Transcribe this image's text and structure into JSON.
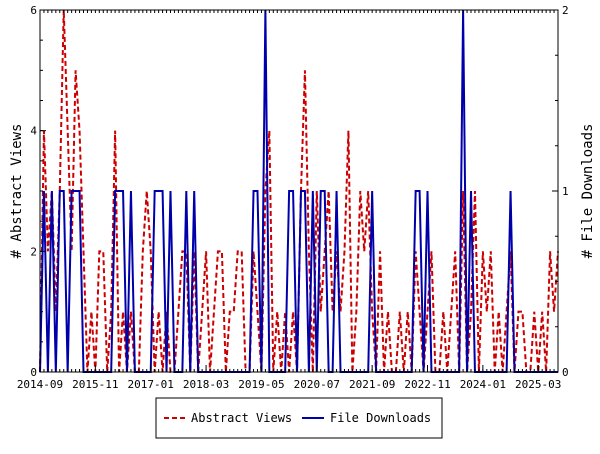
{
  "chart_data": {
    "type": "line",
    "title": "",
    "ylabel_left": "# Abstract Views",
    "ylabel_right": "# File Downloads",
    "x_ticks": [
      "2014-09",
      "2015-11",
      "2017-01",
      "2018-03",
      "2019-05",
      "2020-07",
      "2021-09",
      "2022-11",
      "2024-01",
      "2025-03"
    ],
    "xlim": [
      "2014-09",
      "2025-08"
    ],
    "ylim_left": [
      0,
      6
    ],
    "yticks_left": [
      "0",
      "2",
      "4",
      "6"
    ],
    "ylim_right": [
      0,
      2
    ],
    "yticks_right": [
      "0",
      "1",
      "2"
    ],
    "grid": false,
    "legend_position": "bottom",
    "series": [
      {
        "name": "Abstract Views",
        "axis": "left",
        "color": "#cc0000",
        "style": "dashed",
        "x": [
          "2014-09",
          "2014-10",
          "2014-11",
          "2014-12",
          "2015-01",
          "2015-02",
          "2015-03",
          "2015-04",
          "2015-05",
          "2015-06",
          "2015-07",
          "2015-08",
          "2015-09",
          "2015-10",
          "2015-11",
          "2015-12",
          "2016-01",
          "2016-02",
          "2016-03",
          "2016-04",
          "2016-05",
          "2016-06",
          "2016-07",
          "2016-08",
          "2016-09",
          "2016-10",
          "2016-11",
          "2016-12",
          "2017-01",
          "2017-02",
          "2017-03",
          "2017-04",
          "2017-05",
          "2017-06",
          "2017-07",
          "2017-08",
          "2017-09",
          "2017-10",
          "2017-11",
          "2017-12",
          "2018-01",
          "2018-02",
          "2018-03",
          "2018-04",
          "2018-05",
          "2018-06",
          "2018-07",
          "2018-08",
          "2018-09",
          "2018-10",
          "2018-11",
          "2018-12",
          "2019-01",
          "2019-02",
          "2019-03",
          "2019-04",
          "2019-05",
          "2019-06",
          "2019-07",
          "2019-08",
          "2019-09",
          "2019-10",
          "2019-11",
          "2019-12",
          "2020-01",
          "2020-02",
          "2020-03",
          "2020-04",
          "2020-05",
          "2020-06",
          "2020-07",
          "2020-08",
          "2020-09",
          "2020-10",
          "2020-11",
          "2020-12",
          "2021-01",
          "2021-02",
          "2021-03",
          "2021-04",
          "2021-05",
          "2021-06",
          "2021-07",
          "2021-08",
          "2021-09",
          "2021-10",
          "2021-11",
          "2021-12",
          "2022-01",
          "2022-02",
          "2022-03",
          "2022-04",
          "2022-05",
          "2022-06",
          "2022-07",
          "2022-08",
          "2022-09",
          "2022-10",
          "2022-11",
          "2022-12",
          "2023-01",
          "2023-02",
          "2023-03",
          "2023-04",
          "2023-05",
          "2023-06",
          "2023-07",
          "2023-08",
          "2023-09",
          "2023-10",
          "2023-11",
          "2023-12",
          "2024-01",
          "2024-02",
          "2024-03",
          "2024-04",
          "2024-05",
          "2024-06",
          "2024-07",
          "2024-08",
          "2024-09",
          "2024-10",
          "2024-11",
          "2024-12",
          "2025-01",
          "2025-02",
          "2025-03",
          "2025-04",
          "2025-05",
          "2025-06",
          "2025-07",
          "2025-08"
        ],
        "values": [
          0,
          4,
          2,
          3,
          1,
          3,
          6,
          4,
          2,
          5,
          4,
          2,
          0,
          1,
          0,
          2,
          2,
          0,
          1,
          4,
          0,
          1,
          0,
          1,
          0,
          0,
          2,
          3,
          2,
          0,
          1,
          0,
          1,
          0,
          0,
          1,
          2,
          2,
          0,
          2,
          0,
          1,
          2,
          0,
          1,
          2,
          2,
          0,
          1,
          1,
          2,
          2,
          0,
          0,
          2,
          1,
          0,
          3,
          4,
          0,
          1,
          0,
          1,
          0,
          1,
          0,
          3,
          5,
          2,
          0,
          3,
          1,
          2,
          3,
          1,
          2,
          1,
          2,
          4,
          0,
          1,
          3,
          2,
          3,
          1,
          0,
          2,
          0,
          1,
          0,
          0,
          1,
          0,
          1,
          0,
          2,
          1,
          0,
          1,
          2,
          0,
          0,
          1,
          0,
          1,
          2,
          0,
          3,
          0,
          1,
          3,
          0,
          2,
          1,
          2,
          0,
          1,
          0,
          1,
          2,
          0,
          1,
          1,
          0,
          0,
          1,
          0,
          1,
          0,
          2,
          1,
          2
        ]
      },
      {
        "name": "File Downloads",
        "axis": "right",
        "color": "#0000aa",
        "style": "solid",
        "x": [
          "2014-09",
          "2014-10",
          "2014-11",
          "2014-12",
          "2015-01",
          "2015-02",
          "2015-03",
          "2015-04",
          "2015-05",
          "2015-06",
          "2015-07",
          "2015-08",
          "2015-09",
          "2015-10",
          "2015-11",
          "2015-12",
          "2016-01",
          "2016-02",
          "2016-03",
          "2016-04",
          "2016-05",
          "2016-06",
          "2016-07",
          "2016-08",
          "2016-09",
          "2016-10",
          "2016-11",
          "2016-12",
          "2017-01",
          "2017-02",
          "2017-03",
          "2017-04",
          "2017-05",
          "2017-06",
          "2017-07",
          "2017-08",
          "2017-09",
          "2017-10",
          "2017-11",
          "2017-12",
          "2018-01",
          "2018-02",
          "2018-03",
          "2018-04",
          "2018-05",
          "2018-06",
          "2018-07",
          "2018-08",
          "2018-09",
          "2018-10",
          "2018-11",
          "2018-12",
          "2019-01",
          "2019-02",
          "2019-03",
          "2019-04",
          "2019-05",
          "2019-06",
          "2019-07",
          "2019-08",
          "2019-09",
          "2019-10",
          "2019-11",
          "2019-12",
          "2020-01",
          "2020-02",
          "2020-03",
          "2020-04",
          "2020-05",
          "2020-06",
          "2020-07",
          "2020-08",
          "2020-09",
          "2020-10",
          "2020-11",
          "2020-12",
          "2021-01",
          "2021-02",
          "2021-03",
          "2021-04",
          "2021-05",
          "2021-06",
          "2021-07",
          "2021-08",
          "2021-09",
          "2021-10",
          "2021-11",
          "2021-12",
          "2022-01",
          "2022-02",
          "2022-03",
          "2022-04",
          "2022-05",
          "2022-06",
          "2022-07",
          "2022-08",
          "2022-09",
          "2022-10",
          "2022-11",
          "2022-12",
          "2023-01",
          "2023-02",
          "2023-03",
          "2023-04",
          "2023-05",
          "2023-06",
          "2023-07",
          "2023-08",
          "2023-09",
          "2023-10",
          "2023-11",
          "2023-12",
          "2024-01",
          "2024-02",
          "2024-03",
          "2024-04",
          "2024-05",
          "2024-06",
          "2024-07",
          "2024-08",
          "2024-09",
          "2024-10",
          "2024-11",
          "2024-12",
          "2025-01",
          "2025-02",
          "2025-03",
          "2025-04",
          "2025-05",
          "2025-06",
          "2025-07",
          "2025-08"
        ],
        "values": [
          0,
          1,
          0,
          1,
          0,
          1,
          1,
          0,
          1,
          1,
          1,
          0,
          0,
          0,
          0,
          0,
          0,
          0,
          0,
          1,
          1,
          1,
          0,
          1,
          0,
          0,
          0,
          0,
          0,
          1,
          1,
          1,
          0,
          1,
          0,
          0,
          0,
          1,
          0,
          1,
          0,
          0,
          0,
          0,
          0,
          0,
          0,
          0,
          0,
          0,
          0,
          0,
          0,
          0,
          1,
          1,
          0,
          2,
          0,
          0,
          0,
          0,
          0,
          1,
          1,
          0,
          1,
          1,
          0,
          1,
          0,
          1,
          1,
          0,
          0,
          1,
          0,
          0,
          0,
          0,
          0,
          0,
          0,
          0,
          1,
          0,
          0,
          0,
          0,
          0,
          0,
          0,
          0,
          0,
          0,
          1,
          1,
          0,
          1,
          0,
          0,
          0,
          0,
          0,
          0,
          0,
          0,
          2,
          0,
          1,
          0,
          0,
          0,
          0,
          0,
          0,
          0,
          0,
          0,
          1,
          0,
          0,
          0,
          0,
          0,
          0,
          0,
          0,
          0,
          0,
          0,
          0
        ]
      }
    ]
  },
  "legend": {
    "views_label": "Abstract Views",
    "downloads_label": "File Downloads"
  }
}
